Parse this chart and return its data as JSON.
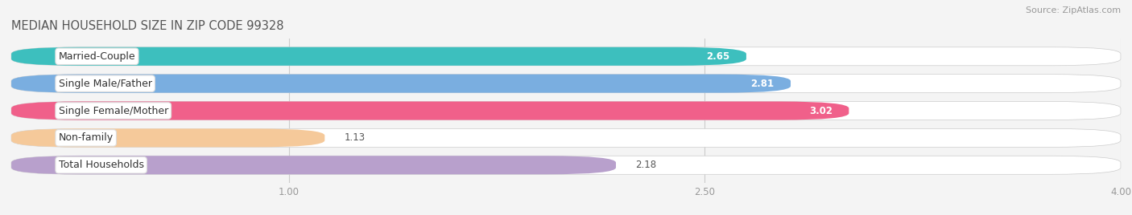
{
  "title": "MEDIAN HOUSEHOLD SIZE IN ZIP CODE 99328",
  "source": "Source: ZipAtlas.com",
  "categories": [
    "Married-Couple",
    "Single Male/Father",
    "Single Female/Mother",
    "Non-family",
    "Total Households"
  ],
  "values": [
    2.65,
    2.81,
    3.02,
    1.13,
    2.18
  ],
  "bar_colors": [
    "#3dbfbe",
    "#7aaee0",
    "#f0608a",
    "#f5c99a",
    "#b8a0cc"
  ],
  "background_color": "#f4f4f4",
  "bar_bg_color": "#e4e4e4",
  "xlim_min": 0.0,
  "xlim_max": 4.0,
  "xticks": [
    1.0,
    2.5,
    4.0
  ],
  "title_fontsize": 10.5,
  "source_fontsize": 8,
  "label_fontsize": 9,
  "value_fontsize": 8.5
}
